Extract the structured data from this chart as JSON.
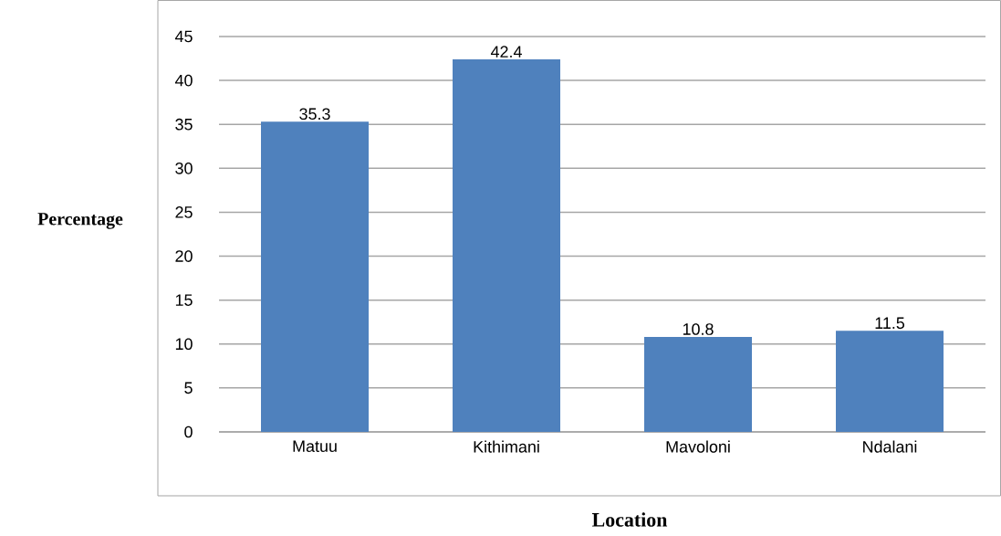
{
  "chart_data": {
    "type": "bar",
    "xlabel": "Location",
    "ylabel": "Percentage",
    "categories": [
      "Matuu",
      "Kithimani",
      "Mavoloni",
      "Ndalani"
    ],
    "values": [
      35.3,
      42.4,
      10.8,
      11.5
    ],
    "color": "#4f81bd",
    "ylim": [
      0,
      45
    ],
    "yticks": [
      0,
      5,
      10,
      15,
      20,
      25,
      30,
      35,
      40,
      45
    ],
    "grid": "y",
    "data_labels": true
  }
}
